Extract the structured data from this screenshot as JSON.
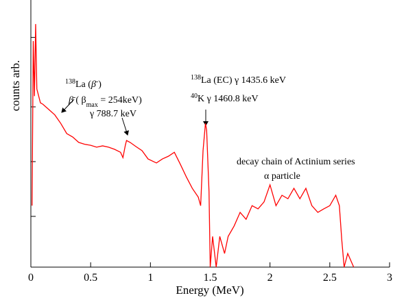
{
  "chart_data": {
    "type": "line",
    "x_label": "Energy (MeV)",
    "y_label": "counts arb.",
    "xlim": [
      0,
      3
    ],
    "xticks": [
      0,
      0.5,
      1,
      1.5,
      2,
      2.5,
      3
    ],
    "ylim": [
      0,
      100
    ],
    "yticks": [
      19,
      39.5,
      60,
      86
    ],
    "series": [
      {
        "color": "#ff0000",
        "x": [
          0.01,
          0.02,
          0.03,
          0.04,
          0.05,
          0.08,
          0.1,
          0.15,
          0.2,
          0.25,
          0.3,
          0.35,
          0.4,
          0.45,
          0.5,
          0.55,
          0.6,
          0.65,
          0.7,
          0.75,
          0.77,
          0.79,
          0.8,
          0.83,
          0.88,
          0.93,
          0.98,
          1.05,
          1.1,
          1.15,
          1.2,
          1.25,
          1.3,
          1.35,
          1.4,
          1.42,
          1.44,
          1.46,
          1.47,
          1.49,
          1.5,
          1.52,
          1.55,
          1.58,
          1.62,
          1.65,
          1.7,
          1.75,
          1.8,
          1.85,
          1.9,
          1.95,
          2.0,
          2.05,
          2.1,
          2.15,
          2.2,
          2.25,
          2.3,
          2.35,
          2.4,
          2.45,
          2.5,
          2.55,
          2.58,
          2.6,
          2.62,
          2.65,
          2.7
        ],
        "values": [
          23,
          84.6,
          64,
          91,
          66.7,
          61.5,
          61,
          59,
          57,
          53.8,
          50,
          48.7,
          46.7,
          46,
          45.6,
          44.9,
          45.4,
          44.9,
          44.1,
          43,
          41,
          45.6,
          47.4,
          46.7,
          45.1,
          43.6,
          40.5,
          39,
          40.5,
          41.5,
          43,
          38.5,
          33.8,
          29.5,
          26.2,
          23,
          43.6,
          53.8,
          51.3,
          28.2,
          0,
          11.5,
          0,
          11.5,
          5.1,
          11.5,
          15.4,
          20.5,
          17.9,
          23,
          21.8,
          24.4,
          30.8,
          23,
          26.9,
          25.6,
          29.5,
          25.6,
          29.5,
          23,
          20.5,
          21.8,
          23,
          26.9,
          23,
          10.3,
          0,
          5.1,
          0
        ]
      }
    ],
    "annotations": [
      [
        {
          "text": "138",
          "style": "sup"
        },
        {
          "text": "La (",
          "style": "normal"
        },
        {
          "text": "β",
          "style": "italic"
        },
        {
          "text": "-",
          "style": "sup"
        },
        {
          "text": ")",
          "style": "normal"
        }
      ],
      [
        {
          "text": "β",
          "style": "italic"
        },
        {
          "text": "-",
          "style": "sup"
        },
        {
          "text": "( β",
          "style": "normal"
        },
        {
          "text": "max",
          "style": "sub"
        },
        {
          "text": " = 254keV)",
          "style": "normal"
        }
      ],
      [
        {
          "text": "γ 788.7 keV",
          "style": "normal"
        }
      ],
      [
        {
          "text": "138",
          "style": "sup"
        },
        {
          "text": "La (EC) γ 1435.6 keV",
          "style": "normal"
        }
      ],
      [
        {
          "text": "40",
          "style": "sup"
        },
        {
          "text": "K γ 1460.8 keV",
          "style": "normal"
        }
      ],
      [
        {
          "text": "decay chain of Actinium series",
          "style": "normal"
        }
      ],
      [
        {
          "text": "α  particle",
          "style": "normal"
        }
      ]
    ]
  }
}
